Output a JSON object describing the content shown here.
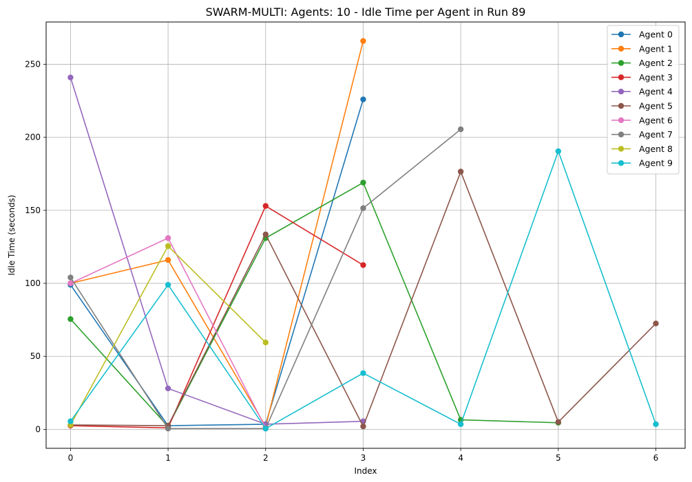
{
  "chart_data": {
    "type": "line",
    "title": "SWARM-MULTI: Agents: 10 - Idle Time per Agent in Run 89",
    "xlabel": "Index",
    "ylabel": "Idle Time (seconds)",
    "xlim": [
      -0.25,
      6.3
    ],
    "ylim": [
      -13,
      279
    ],
    "xticks": [
      0,
      1,
      2,
      3,
      4,
      5,
      6
    ],
    "yticks": [
      0,
      50,
      100,
      150,
      200,
      250
    ],
    "grid": true,
    "legend_position": "top-right",
    "series": [
      {
        "name": "Agent 0",
        "color": "#1f77b4",
        "x": [
          0,
          1,
          2,
          3
        ],
        "values": [
          99,
          2.5,
          3.5,
          226
        ]
      },
      {
        "name": "Agent 1",
        "color": "#ff7f0e",
        "x": [
          0,
          1,
          2,
          3
        ],
        "values": [
          100,
          116,
          2,
          266
        ]
      },
      {
        "name": "Agent 2",
        "color": "#2ca02c",
        "x": [
          0,
          1,
          2,
          3,
          4,
          5
        ],
        "values": [
          75.5,
          2,
          131,
          169,
          6.5,
          4.5
        ]
      },
      {
        "name": "Agent 3",
        "color": "#d62728",
        "x": [
          0,
          1,
          2,
          3
        ],
        "values": [
          2.5,
          1,
          153,
          112.5
        ]
      },
      {
        "name": "Agent 4",
        "color": "#9467bd",
        "x": [
          0,
          1,
          2,
          3
        ],
        "values": [
          241,
          28,
          3.5,
          5.5
        ]
      },
      {
        "name": "Agent 5",
        "color": "#8c564b",
        "x": [
          0,
          1,
          2,
          3,
          4,
          5,
          6
        ],
        "values": [
          3,
          2.5,
          133.5,
          2,
          176.5,
          5,
          72.5
        ]
      },
      {
        "name": "Agent 6",
        "color": "#e377c2",
        "x": [
          0,
          1,
          2
        ],
        "values": [
          100,
          131,
          1
        ]
      },
      {
        "name": "Agent 7",
        "color": "#7f7f7f",
        "x": [
          0,
          1,
          2,
          3,
          4
        ],
        "values": [
          104,
          0.5,
          0.5,
          151.5,
          205.5
        ]
      },
      {
        "name": "Agent 8",
        "color": "#bcbd22",
        "x": [
          0,
          1,
          2
        ],
        "values": [
          3,
          125.5,
          59.5
        ]
      },
      {
        "name": "Agent 9",
        "color": "#17becf",
        "x": [
          0,
          1,
          2,
          3,
          4,
          5,
          6
        ],
        "values": [
          5.5,
          99,
          0.5,
          38.5,
          3.5,
          190.5,
          3.5
        ]
      }
    ]
  }
}
